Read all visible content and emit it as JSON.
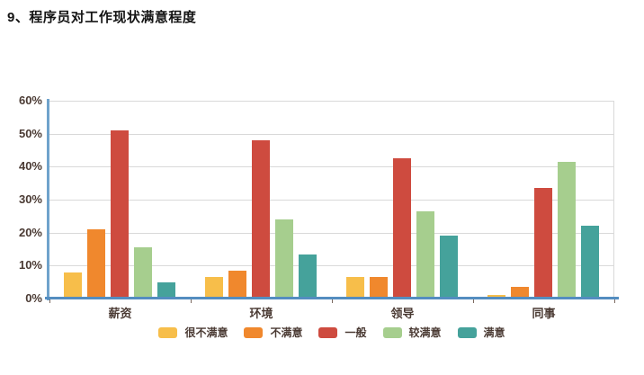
{
  "page_title": "9、程序员对工作现状满意程度",
  "colors": {
    "axis_blue_y": "#6fa3cc",
    "axis_blue_x": "#548dc0",
    "gridline": "#d9d9d9",
    "label_text": "#4a3a33",
    "title_text": "#141414"
  },
  "chart_data": {
    "type": "bar",
    "title": "9、程序员对工作现状满意程度",
    "categories": [
      "薪资",
      "环境",
      "领导",
      "同事"
    ],
    "series": [
      {
        "name": "很不满意",
        "color": "#f7be4a",
        "values": [
          8,
          6.5,
          6.5,
          1
        ]
      },
      {
        "name": "不满意",
        "color": "#f0882d",
        "values": [
          21,
          8.5,
          6.5,
          3.5
        ]
      },
      {
        "name": "一般",
        "color": "#ce4b3f",
        "values": [
          51,
          48,
          42.5,
          33.5
        ]
      },
      {
        "name": "较满意",
        "color": "#a6ce8e",
        "values": [
          15.5,
          24,
          26.5,
          41.5
        ]
      },
      {
        "name": "满意",
        "color": "#45a29b",
        "values": [
          5,
          13.5,
          19,
          22
        ]
      }
    ],
    "xlabel": "",
    "ylabel": "",
    "ylim": [
      0,
      60
    ],
    "ytick_labels": [
      "60%",
      "50%",
      "40%",
      "30%",
      "20%",
      "10%",
      "0%"
    ],
    "grid": true,
    "legend_position": "bottom"
  }
}
